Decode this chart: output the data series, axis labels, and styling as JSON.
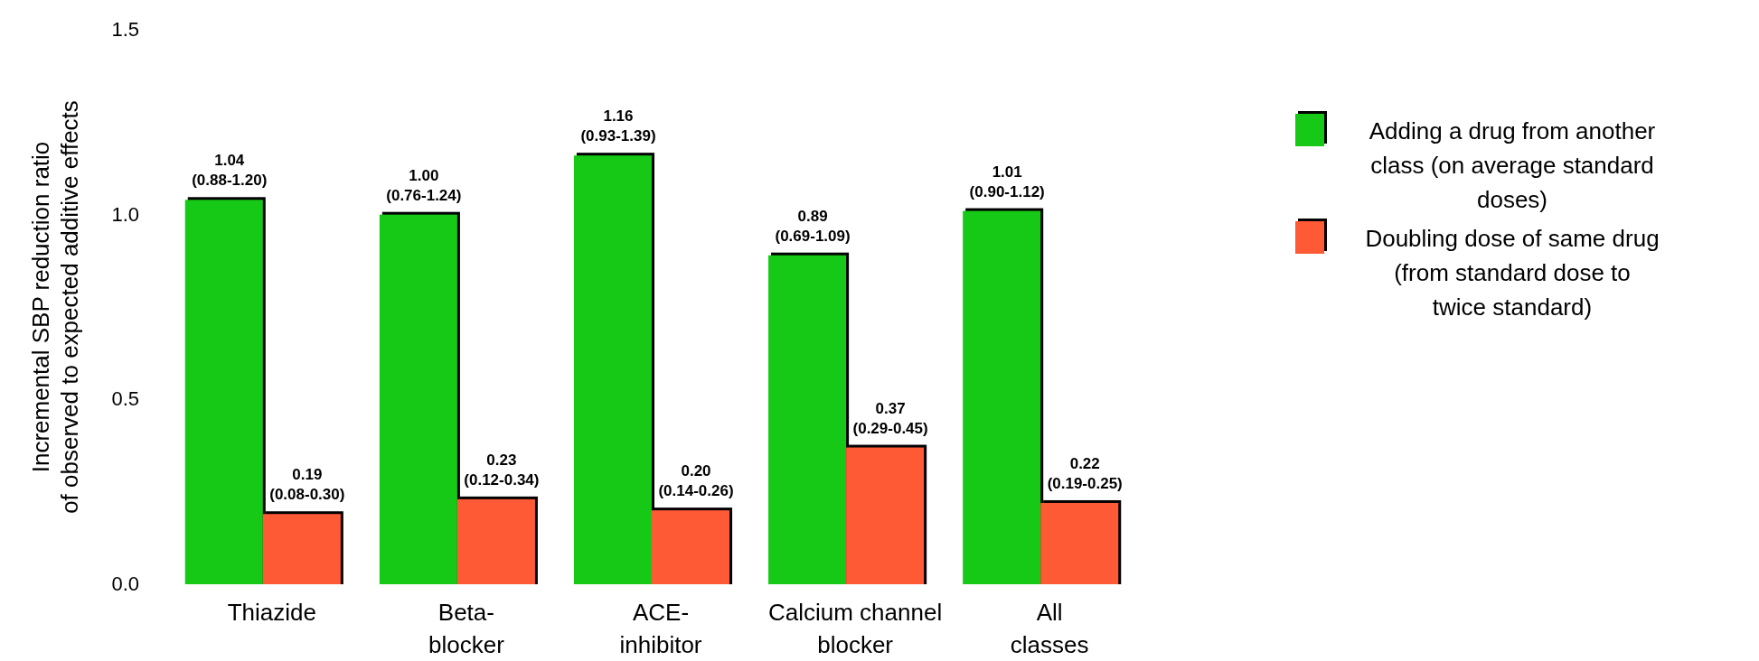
{
  "chart_data": {
    "type": "bar",
    "ylabel": "Incremental SBP reduction ratio\nof observed to expected additive effects",
    "categories": [
      "Thiazide",
      "Beta-\nblocker",
      "ACE-\ninhibitor",
      "Calcium channel\nblocker",
      "All\nclasses"
    ],
    "series": [
      {
        "name": "Adding a drug from another\nclass (on average standard\ndoses)",
        "color": "#16c916",
        "values": [
          1.04,
          1.0,
          1.16,
          0.89,
          1.01
        ],
        "value_labels": [
          "1.04\n(0.88-1.20)",
          "1.00\n(0.76-1.24)",
          "1.16\n(0.93-1.39)",
          "0.89\n(0.69-1.09)",
          "1.01\n(0.90-1.12)"
        ]
      },
      {
        "name": "Doubling dose of same drug\n(from standard dose to\ntwice standard)",
        "color": "#ff5a36",
        "values": [
          0.19,
          0.23,
          0.2,
          0.37,
          0.22
        ],
        "value_labels": [
          "0.19\n(0.08-0.30)",
          "0.23\n(0.12-0.34)",
          "0.20\n(0.14-0.26)",
          "0.37\n(0.29-0.45)",
          "0.22\n(0.19-0.25)"
        ]
      }
    ],
    "ylim": [
      0,
      1.5
    ],
    "yticks": [
      {
        "value": 0,
        "label": "0.0"
      },
      {
        "value": 0.5,
        "label": "0.5"
      },
      {
        "value": 1,
        "label": "1.0"
      },
      {
        "value": 1.5,
        "label": "1.5"
      }
    ],
    "legend": "right"
  }
}
